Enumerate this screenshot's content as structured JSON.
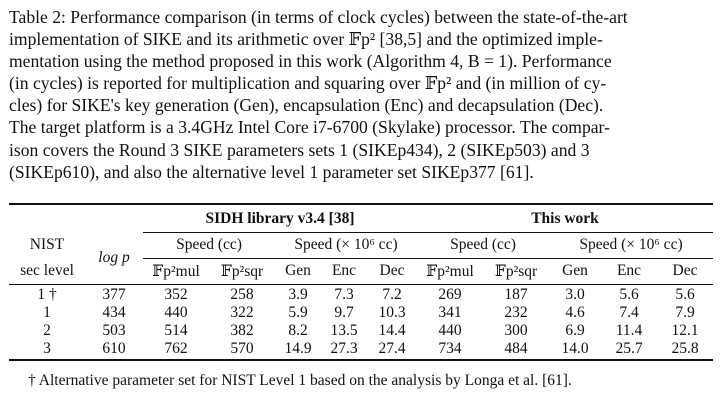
{
  "caption": {
    "lines": [
      "Table 2: Performance comparison (in terms of clock cycles) between the state-of-the-art",
      "implementation of SIKE and its arithmetic over 𝔽p² [38,5] and the optimized imple-",
      "mentation using the method proposed in this work (Algorithm 4, B = 1). Performance",
      "(in cycles) is reported for multiplication and squaring over 𝔽p² and (in million of cy-",
      "cles) for SIKE's key generation (Gen), encapsulation (Enc) and decapsulation (Dec).",
      "The target platform is a 3.4GHz Intel Core i7-6700 (Skylake) processor. The compar-",
      "ison covers the Round 3 SIKE parameters sets 1 (SIKEp434), 2 (SIKEp503) and 3",
      "(SIKEp610), and also the alternative level 1 parameter set SIKEp377 [61]."
    ]
  },
  "table": {
    "group_sidh": "SIDH library v3.4 [38]",
    "group_this": "This work",
    "nist_label": "NIST",
    "sec_level_label": "sec level",
    "logp_label": "log p",
    "speed_cc": "Speed (cc)",
    "speed_1e6": "Speed (× 10⁶ cc)",
    "col_mul": "𝔽p²mul",
    "col_sqr": "𝔽p²sqr",
    "col_gen": "Gen",
    "col_enc": "Enc",
    "col_dec": "Dec",
    "rows": [
      [
        "1 †",
        "377",
        "352",
        "258",
        "3.9",
        "7.3",
        "7.2",
        "269",
        "187",
        "3.0",
        "5.6",
        "5.6"
      ],
      [
        "1",
        "434",
        "440",
        "322",
        "5.9",
        "9.7",
        "10.3",
        "341",
        "232",
        "4.6",
        "7.4",
        "7.9"
      ],
      [
        "2",
        "503",
        "514",
        "382",
        "8.2",
        "13.5",
        "14.4",
        "440",
        "300",
        "6.9",
        "11.4",
        "12.1"
      ],
      [
        "3",
        "610",
        "762",
        "570",
        "14.9",
        "27.3",
        "27.4",
        "734",
        "484",
        "14.0",
        "25.7",
        "25.8"
      ]
    ]
  },
  "footnote": "† Alternative parameter set for NIST Level 1 based on the analysis by Longa et al. [61]."
}
